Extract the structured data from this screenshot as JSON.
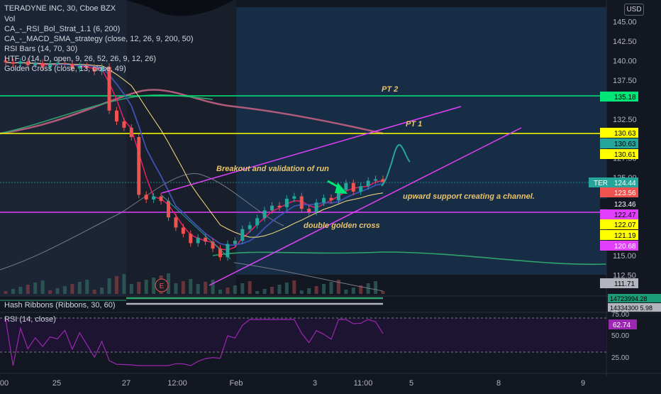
{
  "header": {
    "symbol_line": "TERADYNE INC, 30, Cboe BZX",
    "currency": "USD"
  },
  "indicators": [
    "Vol",
    "CA_-_RSI_Bol_Strat_1.1 (6, 200)",
    "CA_-_MACD_SMA_strategy (close, 12, 26, 9, 200, 50)",
    "RSI Bars (14, 70, 30)",
    "HTF 0 (14, D, open, 9, 26, 52, 26, 9, 12, 26)",
    "Golden Cross (close, 13, close, 49)"
  ],
  "annotations": {
    "pt2": "PT 2",
    "pt1": "PT 1",
    "breakout": "Breakout and validation of run",
    "support": "upward support creating a channel.",
    "golden": "double golden cross",
    "earnings": "E"
  },
  "price_axis": {
    "ticks": [
      "145.00",
      "142.50",
      "140.00",
      "137.50",
      "132.50",
      "127.50",
      "125.00",
      "115.00",
      "112.50"
    ],
    "labels": [
      {
        "text": "135.18",
        "color": "#00e676",
        "text_color": "#000000"
      },
      {
        "text": "130.63",
        "color": "#ffff00",
        "text_color": "#000000"
      },
      {
        "text": "130.63",
        "color": "#26a69a",
        "text_color": "#000000"
      },
      {
        "text": "130.61",
        "color": "#ffff00",
        "text_color": "#000000"
      },
      {
        "text": "124.44",
        "color": "#26a69a",
        "text_color": "#ffffff"
      },
      {
        "text": "123.56",
        "color": "#ef5350",
        "text_color": "#ffffff"
      },
      {
        "text": "123.46",
        "color": "#131722",
        "text_color": "#ffffff"
      },
      {
        "text": "122.47",
        "color": "#e040fb",
        "text_color": "#000000"
      },
      {
        "text": "122.07",
        "color": "#ffff00",
        "text_color": "#000000"
      },
      {
        "text": "121.19",
        "color": "#ffff00",
        "text_color": "#000000"
      },
      {
        "text": "120.68",
        "color": "#e040fb",
        "text_color": "#ffffff"
      },
      {
        "text": "111.71",
        "color": "#b2b5be",
        "text_color": "#000000"
      }
    ],
    "ticker_tag": "TER"
  },
  "ribbons_panel": {
    "title": "Hash Ribbons (Ribbons, 30, 60)",
    "labels": [
      "14723994.28",
      "14334300 5.98"
    ]
  },
  "rsi_panel": {
    "title": "RSI (14, close)",
    "ticks": [
      "75.00",
      "50.00",
      "25.00"
    ],
    "value": "62.74",
    "value_color": "#9c27b0"
  },
  "time_axis": [
    "00",
    "25",
    "27",
    "12:00",
    "Feb",
    "3",
    "11:00",
    "5",
    "8",
    "9"
  ],
  "chart_data": {
    "type": "candlestick",
    "title": "TERADYNE INC, 30, Cboe BZX",
    "ylim": [
      111,
      146.5
    ],
    "x": [
      0,
      2,
      4,
      6,
      8,
      10,
      12,
      14,
      16,
      18,
      20,
      22,
      24,
      26,
      28,
      30,
      32,
      34,
      36,
      38,
      40,
      42,
      44,
      46,
      48,
      50,
      52,
      54,
      56,
      58,
      60,
      62,
      64,
      66,
      68,
      70,
      72,
      74,
      76,
      78,
      80,
      82,
      84,
      86,
      88,
      90,
      92,
      94,
      96,
      98,
      100,
      102
    ],
    "close": [
      139.8,
      139.6,
      139.9,
      139.4,
      139.7,
      139.2,
      139.5,
      139.7,
      139.6,
      139.0,
      139.3,
      139.1,
      138.6,
      139.2,
      133.6,
      132.2,
      131.4,
      130.2,
      122.8,
      122.2,
      122.6,
      122.0,
      119.9,
      118.6,
      117.8,
      116.6,
      117.3,
      116.8,
      115.9,
      114.8,
      116.5,
      116.9,
      118.4,
      118.9,
      119.8,
      120.8,
      121.4,
      121.2,
      122.3,
      122.6,
      121.0,
      120.6,
      121.8,
      122.4,
      122.1,
      123.4,
      124.3,
      123.2,
      123.9,
      124.6,
      124.8,
      124.44
    ],
    "horizontal_levels": [
      135.18,
      130.63,
      122.47
    ],
    "targets": {
      "PT 2": 135.18,
      "PT 1": 130.63
    }
  },
  "colors": {
    "background": "#131722",
    "up": "#26a69a",
    "down": "#ef5350",
    "pt2_line": "#00e676",
    "pt1_line": "#ffff00",
    "support_line": "#e040fb",
    "channel": "#e040fb",
    "annotation_text": "#e8c36b"
  }
}
